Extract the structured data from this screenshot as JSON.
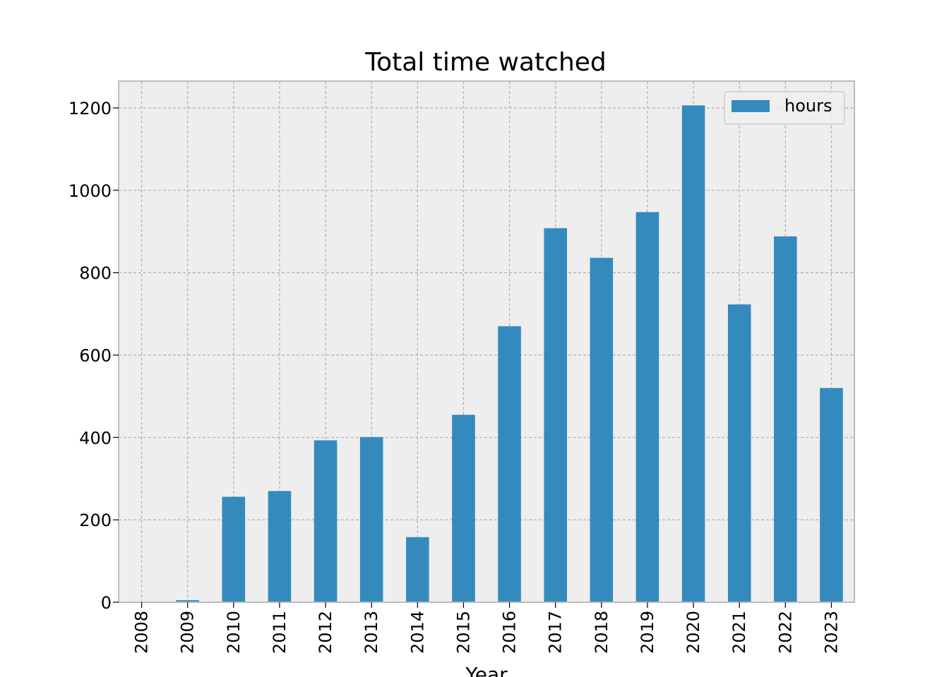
{
  "chart_data": {
    "type": "bar",
    "title": "Total time watched",
    "xlabel": "Year",
    "ylabel": "",
    "categories": [
      "2008",
      "2009",
      "2010",
      "2011",
      "2012",
      "2013",
      "2014",
      "2015",
      "2016",
      "2017",
      "2018",
      "2019",
      "2020",
      "2021",
      "2022",
      "2023"
    ],
    "series": [
      {
        "name": "hours",
        "values": [
          0,
          5,
          256,
          270,
          393,
          401,
          158,
          455,
          670,
          908,
          836,
          947,
          1206,
          723,
          888,
          520
        ]
      }
    ],
    "ylim": [
      0,
      1265
    ],
    "yticks": [
      0,
      200,
      400,
      600,
      800,
      1000,
      1200
    ],
    "grid": true,
    "legend_position": "top-right",
    "colors": {
      "bar": "#348abd",
      "plot_background": "#eeeeee",
      "frame": "#bcbcbc",
      "grid": "#b0b0b0"
    }
  }
}
